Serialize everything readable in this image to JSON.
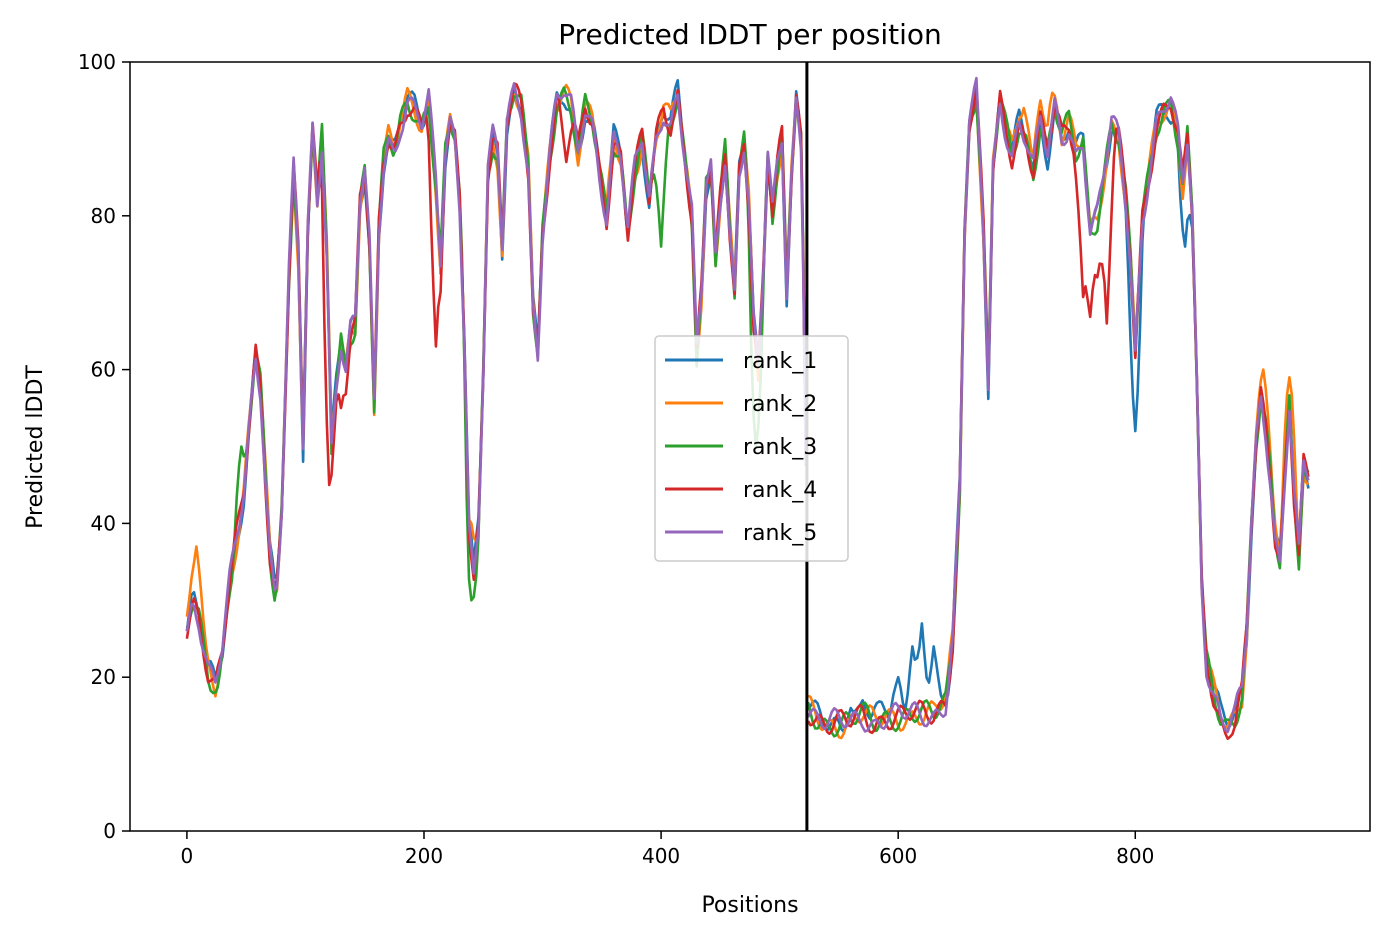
{
  "chart_data": {
    "type": "line",
    "title": "Predicted lDDT per position",
    "xlabel": "Positions",
    "ylabel": "Predicted lDDT",
    "xlim": [
      -48,
      998
    ],
    "ylim": [
      0,
      100
    ],
    "xticks": [
      0,
      200,
      400,
      600,
      800
    ],
    "yticks": [
      0,
      20,
      40,
      60,
      80,
      100
    ],
    "grid": false,
    "legend_position": "center",
    "chain_break": 523,
    "base_profile": [
      [
        0,
        26
      ],
      [
        5,
        30
      ],
      [
        10,
        28
      ],
      [
        18,
        21
      ],
      [
        24,
        19
      ],
      [
        30,
        24
      ],
      [
        36,
        32
      ],
      [
        42,
        38
      ],
      [
        48,
        44
      ],
      [
        54,
        55
      ],
      [
        58,
        62
      ],
      [
        62,
        58
      ],
      [
        66,
        47
      ],
      [
        70,
        36
      ],
      [
        75,
        30
      ],
      [
        80,
        42
      ],
      [
        86,
        72
      ],
      [
        90,
        86
      ],
      [
        94,
        75
      ],
      [
        98,
        50
      ],
      [
        102,
        78
      ],
      [
        106,
        91
      ],
      [
        110,
        82
      ],
      [
        114,
        90
      ],
      [
        118,
        75
      ],
      [
        122,
        50
      ],
      [
        126,
        58
      ],
      [
        130,
        64
      ],
      [
        134,
        60
      ],
      [
        138,
        65
      ],
      [
        142,
        66
      ],
      [
        146,
        82
      ],
      [
        150,
        86
      ],
      [
        154,
        76
      ],
      [
        158,
        55
      ],
      [
        162,
        78
      ],
      [
        166,
        87
      ],
      [
        170,
        90
      ],
      [
        175,
        88
      ],
      [
        180,
        92
      ],
      [
        186,
        95
      ],
      [
        192,
        94
      ],
      [
        198,
        92
      ],
      [
        204,
        95
      ],
      [
        210,
        84
      ],
      [
        214,
        74
      ],
      [
        218,
        88
      ],
      [
        222,
        92
      ],
      [
        226,
        90
      ],
      [
        230,
        82
      ],
      [
        234,
        65
      ],
      [
        238,
        40
      ],
      [
        242,
        33
      ],
      [
        246,
        40
      ],
      [
        250,
        60
      ],
      [
        254,
        86
      ],
      [
        258,
        90
      ],
      [
        262,
        88
      ],
      [
        266,
        76
      ],
      [
        270,
        92
      ],
      [
        276,
        96
      ],
      [
        282,
        94
      ],
      [
        288,
        86
      ],
      [
        292,
        68
      ],
      [
        296,
        62
      ],
      [
        300,
        78
      ],
      [
        306,
        88
      ],
      [
        312,
        95
      ],
      [
        318,
        96
      ],
      [
        324,
        94
      ],
      [
        330,
        88
      ],
      [
        336,
        94
      ],
      [
        342,
        92
      ],
      [
        348,
        86
      ],
      [
        354,
        80
      ],
      [
        360,
        90
      ],
      [
        366,
        88
      ],
      [
        372,
        78
      ],
      [
        378,
        86
      ],
      [
        384,
        90
      ],
      [
        390,
        82
      ],
      [
        396,
        90
      ],
      [
        402,
        94
      ],
      [
        408,
        92
      ],
      [
        414,
        96
      ],
      [
        420,
        88
      ],
      [
        426,
        80
      ],
      [
        430,
        62
      ],
      [
        434,
        70
      ],
      [
        438,
        84
      ],
      [
        442,
        86
      ],
      [
        446,
        74
      ],
      [
        450,
        82
      ],
      [
        454,
        88
      ],
      [
        458,
        78
      ],
      [
        462,
        70
      ],
      [
        466,
        86
      ],
      [
        470,
        90
      ],
      [
        474,
        82
      ],
      [
        478,
        66
      ],
      [
        482,
        60
      ],
      [
        486,
        72
      ],
      [
        490,
        88
      ],
      [
        494,
        80
      ],
      [
        498,
        86
      ],
      [
        502,
        90
      ],
      [
        506,
        70
      ],
      [
        510,
        85
      ],
      [
        514,
        95
      ],
      [
        518,
        90
      ],
      [
        521,
        66
      ],
      [
        524,
        16
      ],
      [
        530,
        15
      ],
      [
        540,
        14
      ],
      [
        550,
        14
      ],
      [
        560,
        14
      ],
      [
        570,
        15
      ],
      [
        580,
        14
      ],
      [
        590,
        15
      ],
      [
        600,
        15
      ],
      [
        610,
        15
      ],
      [
        620,
        15
      ],
      [
        630,
        15
      ],
      [
        640,
        17
      ],
      [
        646,
        25
      ],
      [
        652,
        45
      ],
      [
        656,
        78
      ],
      [
        660,
        92
      ],
      [
        666,
        96
      ],
      [
        672,
        78
      ],
      [
        676,
        58
      ],
      [
        680,
        86
      ],
      [
        686,
        95
      ],
      [
        690,
        92
      ],
      [
        696,
        88
      ],
      [
        702,
        92
      ],
      [
        708,
        90
      ],
      [
        714,
        86
      ],
      [
        720,
        92
      ],
      [
        726,
        88
      ],
      [
        732,
        94
      ],
      [
        738,
        90
      ],
      [
        744,
        92
      ],
      [
        750,
        88
      ],
      [
        756,
        90
      ],
      [
        762,
        78
      ],
      [
        768,
        80
      ],
      [
        774,
        86
      ],
      [
        780,
        92
      ],
      [
        786,
        90
      ],
      [
        792,
        82
      ],
      [
        796,
        74
      ],
      [
        800,
        62
      ],
      [
        806,
        80
      ],
      [
        812,
        86
      ],
      [
        818,
        92
      ],
      [
        824,
        94
      ],
      [
        830,
        95
      ],
      [
        836,
        90
      ],
      [
        840,
        84
      ],
      [
        844,
        90
      ],
      [
        848,
        80
      ],
      [
        852,
        58
      ],
      [
        856,
        32
      ],
      [
        860,
        22
      ],
      [
        866,
        18
      ],
      [
        872,
        15
      ],
      [
        878,
        14
      ],
      [
        884,
        15
      ],
      [
        890,
        18
      ],
      [
        894,
        26
      ],
      [
        898,
        40
      ],
      [
        902,
        50
      ],
      [
        906,
        56
      ],
      [
        910,
        52
      ],
      [
        914,
        46
      ],
      [
        918,
        38
      ],
      [
        922,
        35
      ],
      [
        926,
        46
      ],
      [
        930,
        56
      ],
      [
        934,
        44
      ],
      [
        938,
        36
      ],
      [
        942,
        48
      ],
      [
        946,
        46
      ]
    ],
    "series": [
      {
        "name": "rank_1",
        "color": "#1f77b4",
        "overrides": [
          [
            560,
            16
          ],
          [
            570,
            17
          ],
          [
            585,
            17
          ],
          [
            600,
            20
          ],
          [
            612,
            24
          ],
          [
            620,
            27
          ],
          [
            630,
            24
          ],
          [
            640,
            17
          ],
          [
            800,
            52
          ],
          [
            830,
            92
          ],
          [
            842,
            76
          ]
        ]
      },
      {
        "name": "rank_2",
        "color": "#ff7f0e",
        "overrides": [
          [
            8,
            37
          ],
          [
            240,
            40
          ],
          [
            320,
            97
          ],
          [
            706,
            94
          ],
          [
            720,
            95
          ],
          [
            730,
            96
          ],
          [
            908,
            60
          ],
          [
            930,
            59
          ]
        ]
      },
      {
        "name": "rank_3",
        "color": "#2ca02c",
        "overrides": [
          [
            24,
            18
          ],
          [
            46,
            50
          ],
          [
            240,
            30
          ],
          [
            400,
            76
          ],
          [
            480,
            50
          ]
        ]
      },
      {
        "name": "rank_4",
        "color": "#d62728",
        "overrides": [
          [
            120,
            45
          ],
          [
            130,
            55
          ],
          [
            210,
            63
          ],
          [
            320,
            87
          ],
          [
            756,
            70
          ],
          [
            762,
            66
          ],
          [
            768,
            72
          ],
          [
            776,
            66
          ],
          [
            878,
            12
          ]
        ]
      },
      {
        "name": "rank_5",
        "color": "#9467bd",
        "overrides": []
      }
    ]
  }
}
